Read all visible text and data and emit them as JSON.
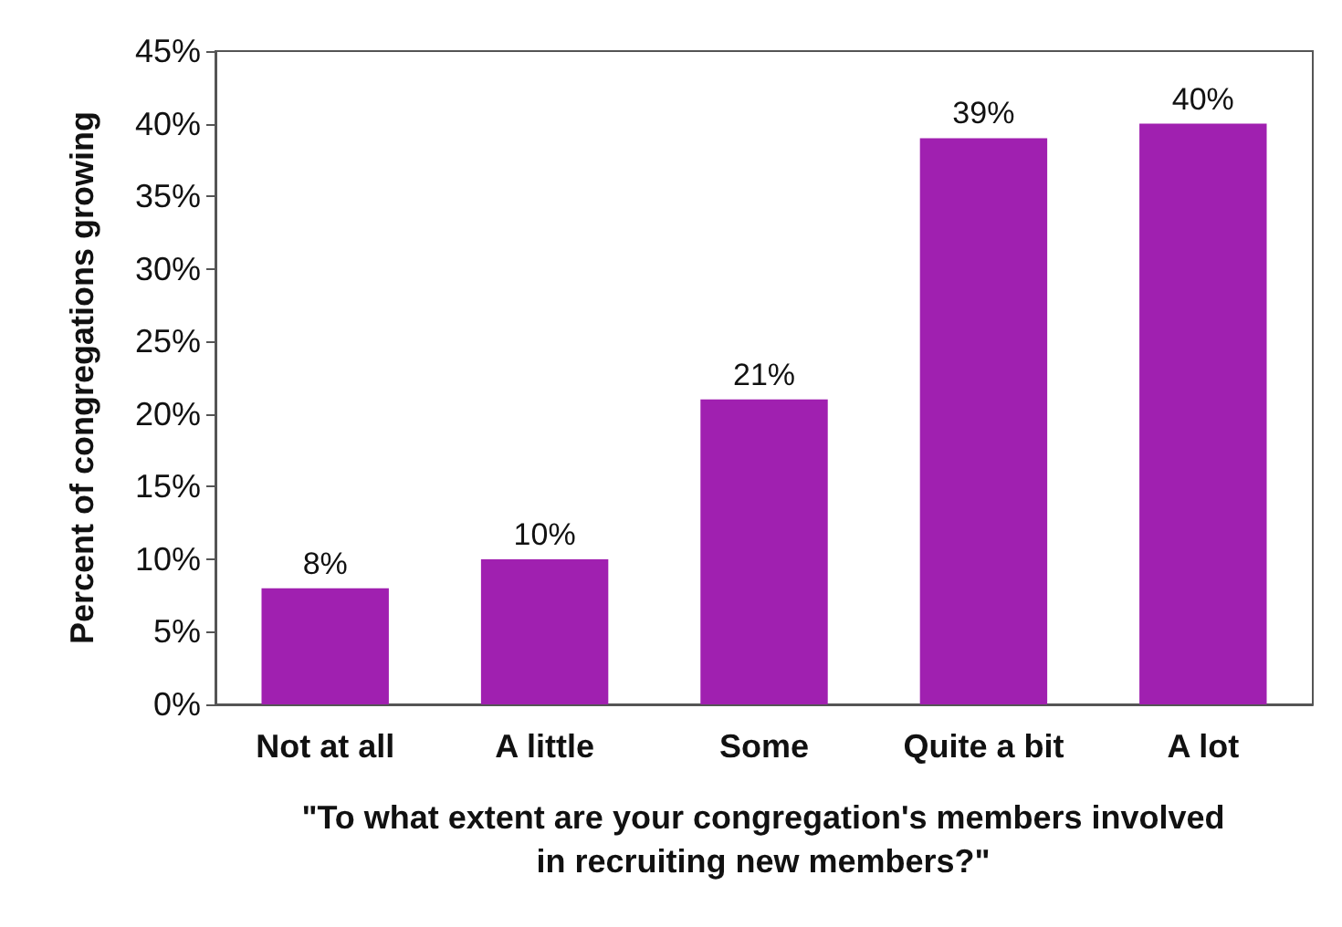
{
  "chart_data": {
    "type": "bar",
    "xlabel": "\"To what extent are your congregation's members involved in recruiting new members?\"",
    "ylabel": "Percent of congregations growing",
    "categories": [
      "Not at all",
      "A little",
      "Some",
      "Quite a bit",
      "A lot"
    ],
    "values": [
      8,
      10,
      21,
      39,
      40
    ],
    "value_labels": [
      "8%",
      "10%",
      "21%",
      "39%",
      "40%"
    ],
    "color": "#a020b0",
    "ylim": [
      0,
      45
    ],
    "yticks": [
      {
        "value": 0,
        "label": "0%"
      },
      {
        "value": 5,
        "label": "5%"
      },
      {
        "value": 10,
        "label": "10%"
      },
      {
        "value": 15,
        "label": "15%"
      },
      {
        "value": 20,
        "label": "20%"
      },
      {
        "value": 25,
        "label": "25%"
      },
      {
        "value": 30,
        "label": "30%"
      },
      {
        "value": 35,
        "label": "35%"
      },
      {
        "value": 40,
        "label": "40%"
      },
      {
        "value": 45,
        "label": "45%"
      }
    ],
    "grid": false
  }
}
